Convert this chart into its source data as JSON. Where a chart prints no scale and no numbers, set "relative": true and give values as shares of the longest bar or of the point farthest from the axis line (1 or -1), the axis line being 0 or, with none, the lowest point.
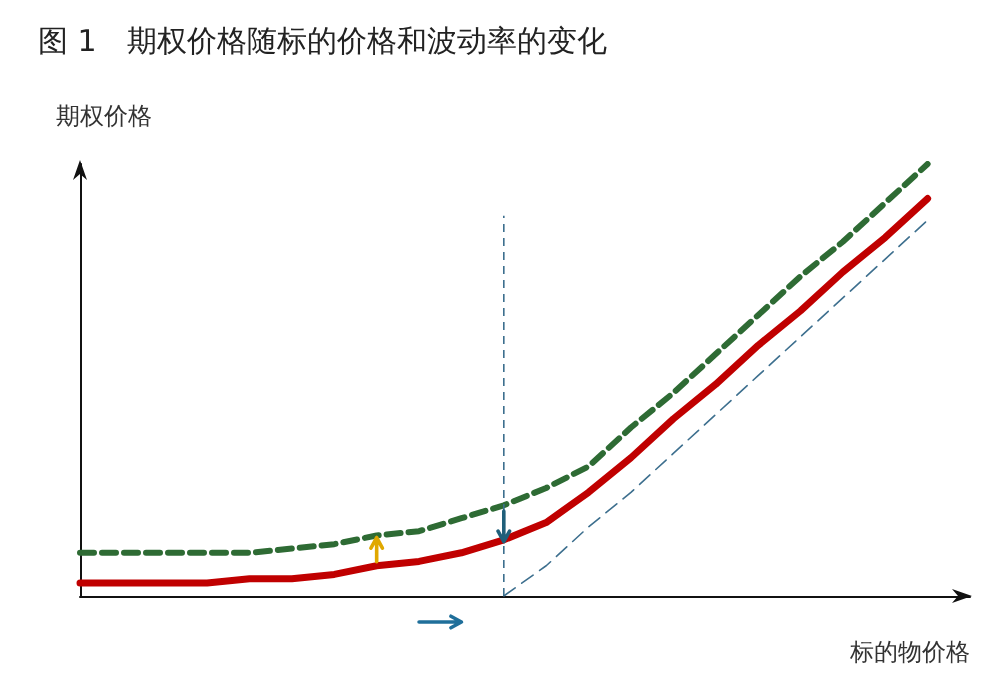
{
  "chart_data": {
    "type": "line",
    "title": "图 1　期权价格随标的价格和波动率的变化",
    "xlabel": "标的物价格",
    "ylabel": "期权价格",
    "relative": true,
    "grid": false,
    "marker": "none",
    "categories": [
      null,
      null,
      null,
      null,
      null,
      null,
      null,
      null,
      null,
      null,
      null,
      null,
      null,
      null,
      null,
      null,
      null,
      null,
      null,
      null,
      null,
      null
    ],
    "series": [
      {
        "color": "#c00000",
        "line_style": "solid",
        "values": [
          0.03,
          0.03,
          0.03,
          0.03,
          0.04,
          0.04,
          0.05,
          0.07,
          0.08,
          0.1,
          0.13,
          0.17,
          0.24,
          0.32,
          0.41,
          0.49,
          0.58,
          0.66,
          0.75,
          0.83,
          0.92,
          null
        ]
      },
      {
        "color": "#2e6b34",
        "line_style": "dashed",
        "values": [
          0.1,
          0.1,
          0.1,
          0.1,
          0.1,
          0.11,
          0.12,
          0.14,
          0.15,
          0.18,
          0.21,
          0.25,
          0.3,
          0.39,
          0.47,
          0.56,
          0.65,
          0.74,
          0.82,
          0.91,
          1.0,
          null
        ]
      },
      {
        "color": "#3d6f8e",
        "line_style": "dashed",
        "values": [
          null,
          null,
          null,
          null,
          null,
          null,
          null,
          null,
          null,
          null,
          0,
          0.07,
          0.16,
          0.24,
          0.33,
          0.42,
          0.51,
          0.6,
          0.69,
          0.78,
          0.87,
          null
        ]
      }
    ]
  }
}
